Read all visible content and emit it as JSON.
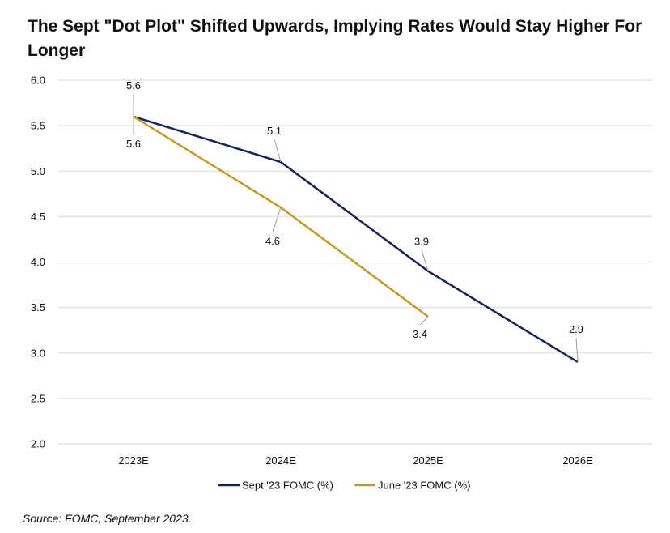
{
  "title": "The Sept \"Dot Plot\" Shifted Upwards, Implying Rates Would Stay Higher For Longer",
  "source": "Source: FOMC, September 2023.",
  "colors": {
    "sept": "#14245a",
    "june": "#c59a21",
    "grid": "#d9d9d9",
    "leader": "#9a9a9a"
  },
  "chart_data": {
    "type": "line",
    "categories": [
      "2023E",
      "2024E",
      "2025E",
      "2026E"
    ],
    "ylim": [
      2.0,
      6.0
    ],
    "yticks": [
      "2.0",
      "2.5",
      "3.0",
      "3.5",
      "4.0",
      "4.5",
      "5.0",
      "5.5",
      "6.0"
    ],
    "grid": true,
    "legend_position": "bottom",
    "series": [
      {
        "name": "Sept '23 FOMC (%)",
        "values": [
          5.6,
          5.1,
          3.9,
          2.9
        ],
        "labels": [
          "5.6",
          "5.1",
          "3.9",
          "2.9"
        ],
        "color": "#14245a"
      },
      {
        "name": "June '23 FOMC (%)",
        "values": [
          5.6,
          4.6,
          3.4,
          null
        ],
        "labels": [
          "5.6",
          "4.6",
          "3.4",
          ""
        ],
        "color": "#c59a21"
      }
    ]
  }
}
